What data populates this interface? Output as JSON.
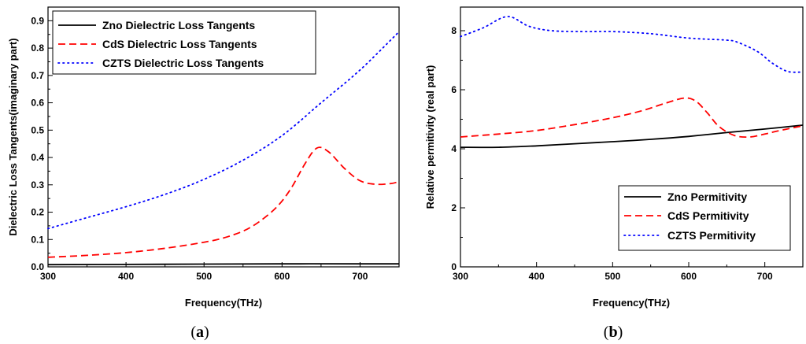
{
  "chart_data": [
    {
      "type": "line",
      "caption_letter": "a",
      "xlabel": "Frequency(THz)",
      "ylabel": "Dielectric Loss Tangents(imaginary part)",
      "xlim": [
        300,
        750
      ],
      "ylim": [
        0,
        0.95
      ],
      "xticks": [
        300,
        400,
        500,
        600,
        700
      ],
      "yticks": [
        "0.0",
        "0.1",
        "0.2",
        "0.3",
        "0.4",
        "0.5",
        "0.6",
        "0.7",
        "0.8",
        "0.9"
      ],
      "legend_position": "top-left",
      "series": [
        {
          "name": "Zno Dielectric Loss Tangents",
          "color": "#000000",
          "style": "solid",
          "x": [
            300,
            400,
            500,
            600,
            700,
            750
          ],
          "y": [
            0.008,
            0.009,
            0.01,
            0.011,
            0.011,
            0.011
          ]
        },
        {
          "name": "CdS Dielectric Loss Tangents",
          "color": "#ff0000",
          "style": "dashed",
          "x": [
            300,
            350,
            400,
            450,
            500,
            530,
            560,
            590,
            610,
            630,
            645,
            660,
            680,
            700,
            720,
            740,
            750
          ],
          "y": [
            0.035,
            0.042,
            0.052,
            0.068,
            0.09,
            0.11,
            0.145,
            0.21,
            0.28,
            0.38,
            0.435,
            0.42,
            0.36,
            0.315,
            0.302,
            0.305,
            0.312
          ]
        },
        {
          "name": "CZTS Dielectric Loss Tangents",
          "color": "#0000ff",
          "style": "dotted",
          "x": [
            300,
            350,
            400,
            450,
            500,
            550,
            600,
            650,
            700,
            750
          ],
          "y": [
            0.14,
            0.18,
            0.22,
            0.265,
            0.32,
            0.39,
            0.48,
            0.6,
            0.72,
            0.86
          ]
        }
      ]
    },
    {
      "type": "line",
      "caption_letter": "b",
      "xlabel": "Frequency(THz)",
      "ylabel": "Relative permitivity (real part)",
      "xlim": [
        300,
        750
      ],
      "ylim": [
        0,
        8.8
      ],
      "xticks": [
        300,
        400,
        500,
        600,
        700
      ],
      "yticks": [
        "0",
        "2",
        "4",
        "6",
        "8"
      ],
      "legend_position": "bottom-right",
      "series": [
        {
          "name": "Zno Permitivity",
          "color": "#000000",
          "style": "solid",
          "x": [
            300,
            350,
            400,
            450,
            500,
            550,
            600,
            650,
            700,
            750
          ],
          "y": [
            4.05,
            4.05,
            4.1,
            4.17,
            4.24,
            4.32,
            4.42,
            4.55,
            4.67,
            4.8
          ]
        },
        {
          "name": "CdS Permitivity",
          "color": "#ff0000",
          "style": "dashed",
          "x": [
            300,
            350,
            400,
            450,
            500,
            540,
            570,
            595,
            610,
            625,
            640,
            660,
            680,
            700,
            720,
            750
          ],
          "y": [
            4.4,
            4.5,
            4.62,
            4.82,
            5.05,
            5.3,
            5.55,
            5.72,
            5.6,
            5.2,
            4.75,
            4.45,
            4.4,
            4.5,
            4.62,
            4.78
          ]
        },
        {
          "name": "CZTS Permitivity",
          "color": "#0000ff",
          "style": "dotted",
          "x": [
            300,
            330,
            362,
            390,
            420,
            460,
            500,
            550,
            600,
            650,
            665,
            690,
            710,
            730,
            750
          ],
          "y": [
            7.8,
            8.1,
            8.48,
            8.15,
            8.0,
            7.97,
            7.97,
            7.9,
            7.75,
            7.68,
            7.6,
            7.3,
            6.9,
            6.62,
            6.6
          ]
        }
      ]
    }
  ]
}
